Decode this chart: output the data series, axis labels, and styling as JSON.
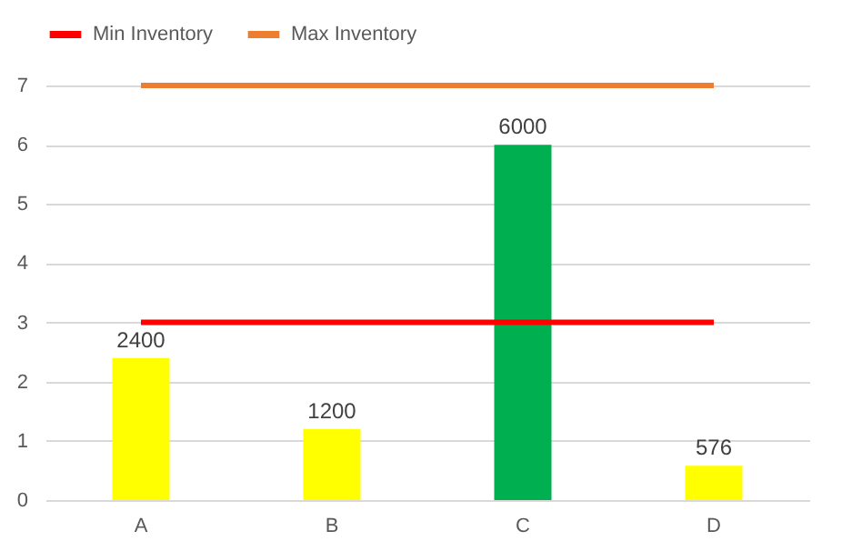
{
  "chart_data": {
    "type": "bar",
    "categories": [
      "A",
      "B",
      "C",
      "D"
    ],
    "series": [
      {
        "colors": [
          "#ffff00",
          "#ffff00",
          "#00b050",
          "#ffff00"
        ],
        "values": [
          2.4,
          1.2,
          6,
          0.58
        ]
      },
      {
        "type": "line",
        "name": "Min Inventory",
        "color": "#ff0000",
        "values": [
          3,
          3,
          3,
          3
        ]
      },
      {
        "type": "line",
        "name": "Max Inventory",
        "color": "#ed7d31",
        "values": [
          7,
          7,
          7,
          7
        ]
      }
    ],
    "annotations": [
      {
        "text": "2400",
        "x": "A",
        "y": 2.4
      },
      {
        "text": "1200",
        "x": "B",
        "y": 1.2
      },
      {
        "text": "6000",
        "x": "C",
        "y": 6
      },
      {
        "text": "576",
        "x": "D",
        "y": 0.58
      }
    ],
    "ylim": [
      0,
      7
    ],
    "yticks": [
      0,
      1,
      2,
      3,
      4,
      5,
      6,
      7
    ],
    "grid": "y",
    "legend": "top"
  }
}
